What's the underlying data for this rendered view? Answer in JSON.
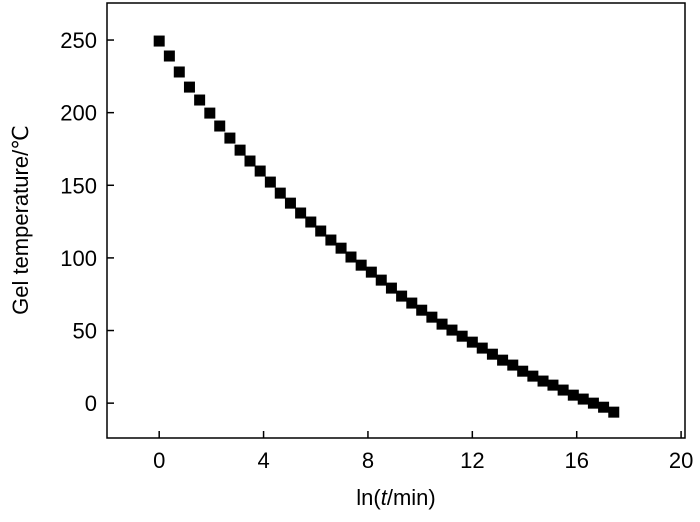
{
  "chart_data": {
    "type": "scatter",
    "x_label_parts": [
      "ln(",
      "t",
      "/min)"
    ],
    "y_label": "Gel temperature/℃",
    "color": "#000000",
    "xlim": [
      -2,
      20.15
    ],
    "xticks": [
      0,
      4,
      8,
      12,
      16,
      20
    ],
    "ylim": [
      -24,
      275.5
    ],
    "yticks": [
      0,
      50,
      100,
      150,
      200,
      250
    ],
    "x": [
      0,
      0.39,
      0.77,
      1.16,
      1.55,
      1.94,
      2.32,
      2.71,
      3.1,
      3.48,
      3.87,
      4.26,
      4.64,
      5.03,
      5.42,
      5.81,
      6.19,
      6.58,
      6.97,
      7.35,
      7.74,
      8.13,
      8.51,
      8.9,
      9.29,
      9.68,
      10.06,
      10.45,
      10.84,
      11.22,
      11.61,
      12.0,
      12.38,
      12.77,
      13.16,
      13.55,
      13.93,
      14.32,
      14.71,
      15.09,
      15.48,
      15.87,
      16.25,
      16.64,
      17.03,
      17.42
    ],
    "values": [
      249.3,
      239.0,
      228.0,
      217.6,
      208.7,
      199.7,
      190.8,
      182.5,
      174.2,
      166.7,
      159.8,
      152.2,
      144.6,
      137.7,
      130.9,
      124.7,
      118.5,
      112.3,
      106.7,
      100.6,
      95.0,
      90.2,
      84.7,
      79.2,
      73.7,
      68.9,
      64.0,
      59.2,
      54.4,
      50.3,
      46.1,
      42.0,
      37.9,
      33.7,
      29.6,
      26.2,
      22.0,
      18.6,
      15.2,
      12.4,
      9.0,
      5.5,
      2.8,
      0,
      -2.8,
      -6.2
    ]
  }
}
